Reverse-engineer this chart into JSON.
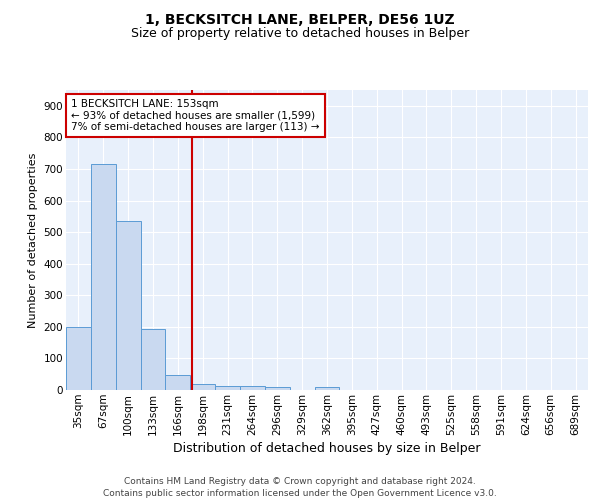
{
  "title1": "1, BECKSITCH LANE, BELPER, DE56 1UZ",
  "title2": "Size of property relative to detached houses in Belper",
  "xlabel": "Distribution of detached houses by size in Belper",
  "ylabel": "Number of detached properties",
  "categories": [
    "35sqm",
    "67sqm",
    "100sqm",
    "133sqm",
    "166sqm",
    "198sqm",
    "231sqm",
    "264sqm",
    "296sqm",
    "329sqm",
    "362sqm",
    "395sqm",
    "427sqm",
    "460sqm",
    "493sqm",
    "525sqm",
    "558sqm",
    "591sqm",
    "624sqm",
    "656sqm",
    "689sqm"
  ],
  "values": [
    200,
    715,
    535,
    193,
    46,
    20,
    14,
    13,
    8,
    0,
    9,
    0,
    0,
    0,
    0,
    0,
    0,
    0,
    0,
    0,
    0
  ],
  "bar_color": "#c9d9f0",
  "bar_edge_color": "#5b9bd5",
  "bar_width": 1.0,
  "vline_x": 4.55,
  "vline_color": "#cc0000",
  "annotation_text": "1 BECKSITCH LANE: 153sqm\n← 93% of detached houses are smaller (1,599)\n7% of semi-detached houses are larger (113) →",
  "annotation_box_color": "white",
  "annotation_box_edge": "#cc0000",
  "ylim": [
    0,
    950
  ],
  "yticks": [
    0,
    100,
    200,
    300,
    400,
    500,
    600,
    700,
    800,
    900
  ],
  "bg_color": "#e8f0fb",
  "grid_color": "white",
  "footnote": "Contains HM Land Registry data © Crown copyright and database right 2024.\nContains public sector information licensed under the Open Government Licence v3.0.",
  "title1_fontsize": 10,
  "title2_fontsize": 9,
  "xlabel_fontsize": 9,
  "ylabel_fontsize": 8,
  "tick_fontsize": 7.5,
  "annot_fontsize": 7.5,
  "footnote_fontsize": 6.5
}
